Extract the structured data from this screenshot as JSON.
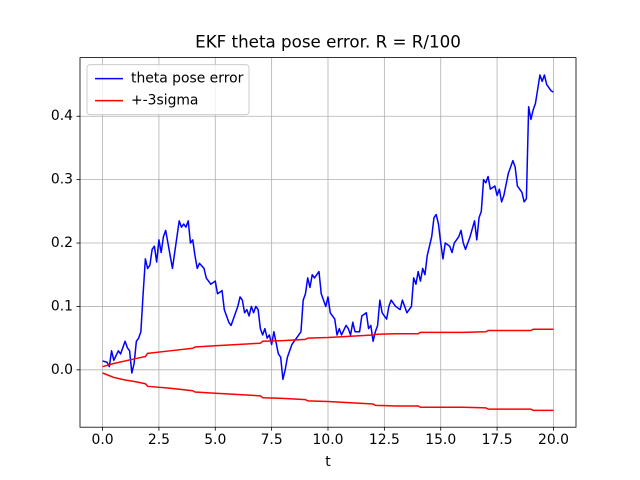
{
  "chart_data": {
    "type": "line",
    "title": "EKF theta pose error. R = R/100",
    "xlabel": "t",
    "xlim": [
      -1,
      21
    ],
    "ylim": [
      -0.0905,
      0.4925
    ],
    "xticks": [
      {
        "value": 0,
        "label": "0.0"
      },
      2.5,
      {
        "value": 5,
        "label": "5.0"
      },
      7.5,
      {
        "value": 10,
        "label": "10.0"
      },
      12.5,
      {
        "value": 15,
        "label": "15.0"
      },
      17.5,
      {
        "value": 20,
        "label": "20.0"
      }
    ],
    "yticks": [
      {
        "value": 0,
        "label": "0.0"
      },
      0.1,
      0.2,
      0.3,
      0.4
    ],
    "grid": true,
    "legend": "upper left",
    "series": [
      {
        "name": "theta pose error",
        "color": "#0000ff",
        "x": [
          0,
          0.2,
          0.3,
          0.4,
          0.5,
          0.7,
          0.8,
          1.0,
          1.1,
          1.2,
          1.3,
          1.4,
          1.5,
          1.6,
          1.7,
          1.8,
          1.9,
          2.0,
          2.1,
          2.2,
          2.3,
          2.4,
          2.5,
          2.6,
          2.7,
          2.8,
          2.9,
          3.1,
          3.3,
          3.4,
          3.5,
          3.6,
          3.7,
          3.8,
          3.9,
          4.0,
          4.1,
          4.2,
          4.3,
          4.5,
          4.6,
          4.8,
          5.0,
          5.1,
          5.3,
          5.4,
          5.6,
          5.7,
          5.9,
          6.0,
          6.1,
          6.2,
          6.3,
          6.4,
          6.5,
          6.6,
          6.7,
          6.8,
          6.9,
          7.0,
          7.1,
          7.2,
          7.3,
          7.4,
          7.5,
          7.6,
          7.8,
          7.9,
          8.0,
          8.1,
          8.2,
          8.3,
          8.4,
          8.6,
          8.8,
          8.9,
          9.0,
          9.1,
          9.2,
          9.3,
          9.4,
          9.6,
          9.7,
          9.8,
          9.9,
          10.0,
          10.1,
          10.3,
          10.4,
          10.5,
          10.6,
          10.8,
          10.9,
          11.0,
          11.1,
          11.2,
          11.4,
          11.5,
          11.7,
          11.8,
          11.9,
          12.0,
          12.1,
          12.2,
          12.3,
          12.4,
          12.6,
          12.7,
          12.8,
          13.0,
          13.2,
          13.3,
          13.5,
          13.7,
          13.8,
          13.9,
          14.0,
          14.1,
          14.2,
          14.3,
          14.4,
          14.6,
          14.7,
          14.8,
          14.9,
          15.0,
          15.1,
          15.2,
          15.4,
          15.5,
          15.6,
          15.8,
          15.9,
          16.0,
          16.1,
          16.3,
          16.5,
          16.6,
          16.7,
          16.8,
          16.9,
          17.0,
          17.1,
          17.2,
          17.4,
          17.5,
          17.6,
          17.7,
          17.8,
          18.0,
          18.2,
          18.3,
          18.4,
          18.6,
          18.7,
          18.8,
          18.9,
          19.0,
          19.1,
          19.2,
          19.4,
          19.5,
          19.6,
          19.7,
          19.9,
          20.0
        ],
        "values": [
          0.014,
          0.012,
          0.005,
          0.03,
          0.015,
          0.03,
          0.025,
          0.045,
          0.035,
          0.03,
          -0.005,
          0.01,
          0.045,
          0.05,
          0.06,
          0.12,
          0.175,
          0.16,
          0.165,
          0.19,
          0.195,
          0.17,
          0.205,
          0.185,
          0.21,
          0.22,
          0.2,
          0.16,
          0.21,
          0.235,
          0.225,
          0.23,
          0.225,
          0.235,
          0.2,
          0.205,
          0.18,
          0.16,
          0.168,
          0.16,
          0.145,
          0.135,
          0.14,
          0.12,
          0.125,
          0.095,
          0.075,
          0.07,
          0.09,
          0.1,
          0.115,
          0.11,
          0.09,
          0.095,
          0.085,
          0.1,
          0.09,
          0.1,
          0.095,
          0.065,
          0.055,
          0.065,
          0.05,
          0.055,
          0.04,
          0.06,
          0.025,
          0.02,
          -0.015,
          0.0,
          0.02,
          0.03,
          0.04,
          0.05,
          0.06,
          0.11,
          0.12,
          0.145,
          0.13,
          0.15,
          0.145,
          0.155,
          0.12,
          0.11,
          0.1,
          0.115,
          0.09,
          0.08,
          0.055,
          0.065,
          0.055,
          0.07,
          0.065,
          0.055,
          0.075,
          0.06,
          0.06,
          0.085,
          0.09,
          0.065,
          0.07,
          0.045,
          0.06,
          0.07,
          0.11,
          0.09,
          0.08,
          0.1,
          0.11,
          0.1,
          0.095,
          0.11,
          0.09,
          0.1,
          0.145,
          0.135,
          0.155,
          0.14,
          0.16,
          0.15,
          0.18,
          0.21,
          0.24,
          0.245,
          0.23,
          0.2,
          0.175,
          0.2,
          0.195,
          0.185,
          0.2,
          0.21,
          0.22,
          0.2,
          0.19,
          0.21,
          0.235,
          0.205,
          0.24,
          0.25,
          0.3,
          0.295,
          0.305,
          0.285,
          0.29,
          0.275,
          0.285,
          0.265,
          0.275,
          0.31,
          0.33,
          0.32,
          0.29,
          0.28,
          0.265,
          0.27,
          0.415,
          0.395,
          0.41,
          0.42,
          0.465,
          0.455,
          0.465,
          0.45,
          0.44,
          0.438
        ]
      },
      {
        "name": "+-3sigma",
        "color": "#ff0000",
        "x": [
          0,
          0.5,
          1,
          1.5,
          1.9,
          2.0,
          3,
          4,
          4.1,
          5,
          6,
          7,
          7.1,
          8,
          9,
          9.1,
          10,
          11,
          12,
          12.1,
          13,
          14,
          14.1,
          15,
          16,
          17,
          17.1,
          18,
          19,
          19.1,
          20
        ],
        "values": [
          0.005,
          0.01,
          0.014,
          0.018,
          0.021,
          0.026,
          0.03,
          0.034,
          0.036,
          0.038,
          0.04,
          0.042,
          0.045,
          0.046,
          0.048,
          0.05,
          0.051,
          0.053,
          0.055,
          0.056,
          0.057,
          0.057,
          0.059,
          0.059,
          0.059,
          0.06,
          0.062,
          0.062,
          0.062,
          0.064,
          0.064
        ]
      },
      {
        "color": "#ff0000",
        "x": [
          0,
          0.5,
          1,
          1.5,
          1.9,
          2.0,
          3,
          4,
          4.1,
          5,
          6,
          7,
          7.1,
          8,
          9,
          9.1,
          10,
          11,
          12,
          12.1,
          13,
          14,
          14.1,
          15,
          16,
          17,
          17.1,
          18,
          19,
          19.1,
          20
        ],
        "values": [
          -0.005,
          -0.012,
          -0.016,
          -0.019,
          -0.022,
          -0.026,
          -0.029,
          -0.033,
          -0.035,
          -0.037,
          -0.039,
          -0.041,
          -0.044,
          -0.045,
          -0.047,
          -0.049,
          -0.05,
          -0.052,
          -0.054,
          -0.056,
          -0.057,
          -0.057,
          -0.059,
          -0.059,
          -0.059,
          -0.06,
          -0.062,
          -0.062,
          -0.062,
          -0.064,
          -0.064
        ]
      }
    ]
  }
}
